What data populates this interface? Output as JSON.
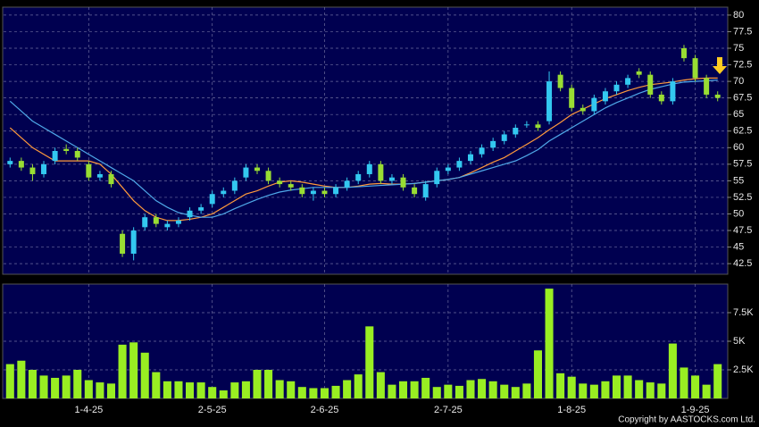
{
  "chart_data": [
    {
      "type": "candlestick",
      "categories": [
        null,
        null,
        null,
        null,
        null,
        null,
        null,
        "1-4-25",
        null,
        null,
        null,
        null,
        null,
        null,
        null,
        null,
        null,
        null,
        "2-5-25",
        null,
        null,
        null,
        null,
        null,
        null,
        null,
        null,
        null,
        "2-6-25",
        null,
        null,
        null,
        null,
        null,
        null,
        null,
        null,
        null,
        null,
        "2-7-25",
        null,
        null,
        null,
        null,
        null,
        null,
        null,
        null,
        null,
        null,
        "1-8-25",
        null,
        null,
        null,
        null,
        null,
        null,
        null,
        null,
        null,
        null,
        "1-9-25",
        null,
        null
      ],
      "open": [
        57.5,
        58,
        57,
        56,
        58,
        59.8,
        59.5,
        57.5,
        55.5,
        56,
        47,
        44,
        48,
        49.5,
        48,
        48.5,
        49.5,
        50.5,
        51.5,
        53,
        53.5,
        55.5,
        57,
        56.5,
        55,
        54.5,
        54,
        53,
        53.5,
        53,
        54,
        55,
        56,
        57.5,
        55,
        55.5,
        54,
        52.5,
        54.5,
        56.5,
        57,
        58,
        59,
        60,
        61,
        62,
        63.5,
        63.5,
        64,
        71,
        69,
        66,
        65.5,
        67,
        68.5,
        69.5,
        71.5,
        71,
        68,
        67,
        75,
        73.5,
        70.5,
        68
      ],
      "high": [
        58.5,
        58.5,
        57.5,
        58,
        60,
        60.5,
        60,
        58,
        56.5,
        56.5,
        47.5,
        48,
        50,
        50,
        49,
        49.5,
        51,
        51.5,
        53.5,
        54,
        55.5,
        57.5,
        57.5,
        57,
        55.5,
        55,
        54.5,
        54,
        54,
        54.5,
        55.5,
        56.5,
        58,
        58,
        56,
        56,
        54.5,
        55,
        57,
        57.5,
        58.5,
        59.5,
        60.5,
        61.5,
        62.5,
        63.5,
        64,
        64,
        71.5,
        71.5,
        69.5,
        66.5,
        68,
        69,
        70,
        71,
        72,
        71.5,
        68.5,
        70.5,
        75.5,
        74,
        71,
        68.5
      ],
      "low": [
        57,
        56.5,
        55,
        55.5,
        57.5,
        59,
        58,
        55,
        55,
        54,
        43.5,
        43,
        47.5,
        48,
        47.5,
        48,
        49,
        50,
        51,
        52.5,
        53,
        55,
        56,
        54.5,
        54,
        53.5,
        52.5,
        52,
        52.5,
        52.5,
        53.5,
        54.5,
        55.5,
        54.5,
        54.5,
        53.5,
        52.5,
        52,
        54,
        56,
        56.5,
        57.5,
        58.5,
        59.5,
        60.5,
        61.5,
        63,
        62.5,
        63.5,
        68.5,
        65.5,
        65,
        65,
        66.5,
        68,
        69,
        70.5,
        67.5,
        66.5,
        66.5,
        73,
        70,
        67.5,
        67
      ],
      "close": [
        58,
        57,
        56,
        57.5,
        59.5,
        59.5,
        58.5,
        55.5,
        56,
        54.5,
        44,
        47.5,
        49.5,
        48.5,
        48.5,
        49,
        50.5,
        51,
        53,
        53.5,
        55,
        57,
        56.5,
        55,
        54.5,
        54,
        53,
        53.5,
        53,
        54,
        55,
        56,
        57.5,
        55,
        55.5,
        54,
        53,
        54.5,
        56.5,
        57,
        58,
        59,
        60,
        61,
        62,
        63,
        63.5,
        63,
        70,
        69,
        66,
        65.5,
        67.5,
        68.5,
        69.5,
        70.5,
        71,
        68,
        67,
        70,
        73.5,
        70.5,
        68,
        67.5
      ],
      "up_color": "#33c8f0",
      "down_color": "#99dd33",
      "series": [
        {
          "color": "#ff9a3c",
          "values": [
            63,
            61.5,
            60,
            59,
            58,
            58,
            58,
            58,
            57.5,
            56,
            54,
            52,
            50.5,
            49.5,
            49,
            49,
            49.2,
            49.5,
            50,
            51,
            52,
            53,
            53.5,
            54.2,
            54.8,
            55,
            54.8,
            54.5,
            54.2,
            54,
            54,
            54.2,
            54.5,
            54.6,
            54.5,
            54.5,
            54.6,
            54.8,
            55,
            55.2,
            55.5,
            56.2,
            57,
            57.8,
            58.5,
            59.5,
            60.5,
            61.5,
            62.7,
            63.8,
            65,
            65.8,
            66.6,
            67.4,
            68,
            68.6,
            69.1,
            69.5,
            69.7,
            69.9,
            70.2,
            70.4,
            70.5,
            70.5
          ]
        },
        {
          "color": "#4fa8e8",
          "values": [
            67,
            65.5,
            64,
            63,
            62,
            61,
            60,
            59,
            58,
            57,
            56,
            55,
            53.5,
            52,
            51,
            50.2,
            49.8,
            49.5,
            49.5,
            50,
            50.8,
            51.5,
            52.2,
            52.8,
            53.3,
            53.6,
            53.8,
            54,
            54,
            54,
            54,
            54.1,
            54.2,
            54.3,
            54.4,
            54.5,
            54.6,
            54.8,
            55,
            55.2,
            55.5,
            56,
            56.5,
            57,
            57.5,
            58,
            58.8,
            59.7,
            61,
            62,
            63,
            64,
            65,
            66,
            66.8,
            67.5,
            68.2,
            68.8,
            69.2,
            69.6,
            69.9,
            70,
            70.1,
            70.2
          ]
        }
      ],
      "ylim": [
        40.9,
        81.2
      ],
      "yticks": [
        42.5,
        45,
        47.5,
        50,
        52.5,
        55,
        57.5,
        60,
        62.5,
        65,
        67.5,
        70,
        72.5,
        75,
        77.5,
        80
      ],
      "grid": true
    },
    {
      "type": "bar",
      "values": [
        3000,
        3300,
        2500,
        2000,
        1800,
        2000,
        2500,
        1600,
        1400,
        1300,
        4700,
        4900,
        4000,
        2300,
        1500,
        1500,
        1400,
        1400,
        1000,
        700,
        1400,
        1500,
        2500,
        2500,
        1600,
        1500,
        1000,
        900,
        900,
        1100,
        1600,
        2100,
        6300,
        2300,
        1200,
        1500,
        1500,
        1800,
        1000,
        1200,
        1100,
        1600,
        1700,
        1500,
        1200,
        1000,
        1300,
        4200,
        9600,
        2200,
        1900,
        1300,
        1200,
        1500,
        2000,
        2000,
        1600,
        1400,
        1300,
        4800,
        2700,
        2000,
        1200,
        3000
      ],
      "color": "#99ee22",
      "ylim": [
        0,
        10000
      ],
      "yticks": [
        {
          "value": 2500,
          "label": "2.5K"
        },
        {
          "value": 5000,
          "label": "5K"
        },
        {
          "value": 7500,
          "label": "7.5K"
        }
      ],
      "grid": true
    }
  ],
  "footer": "Copyright by AASTOCKS.com Ltd."
}
